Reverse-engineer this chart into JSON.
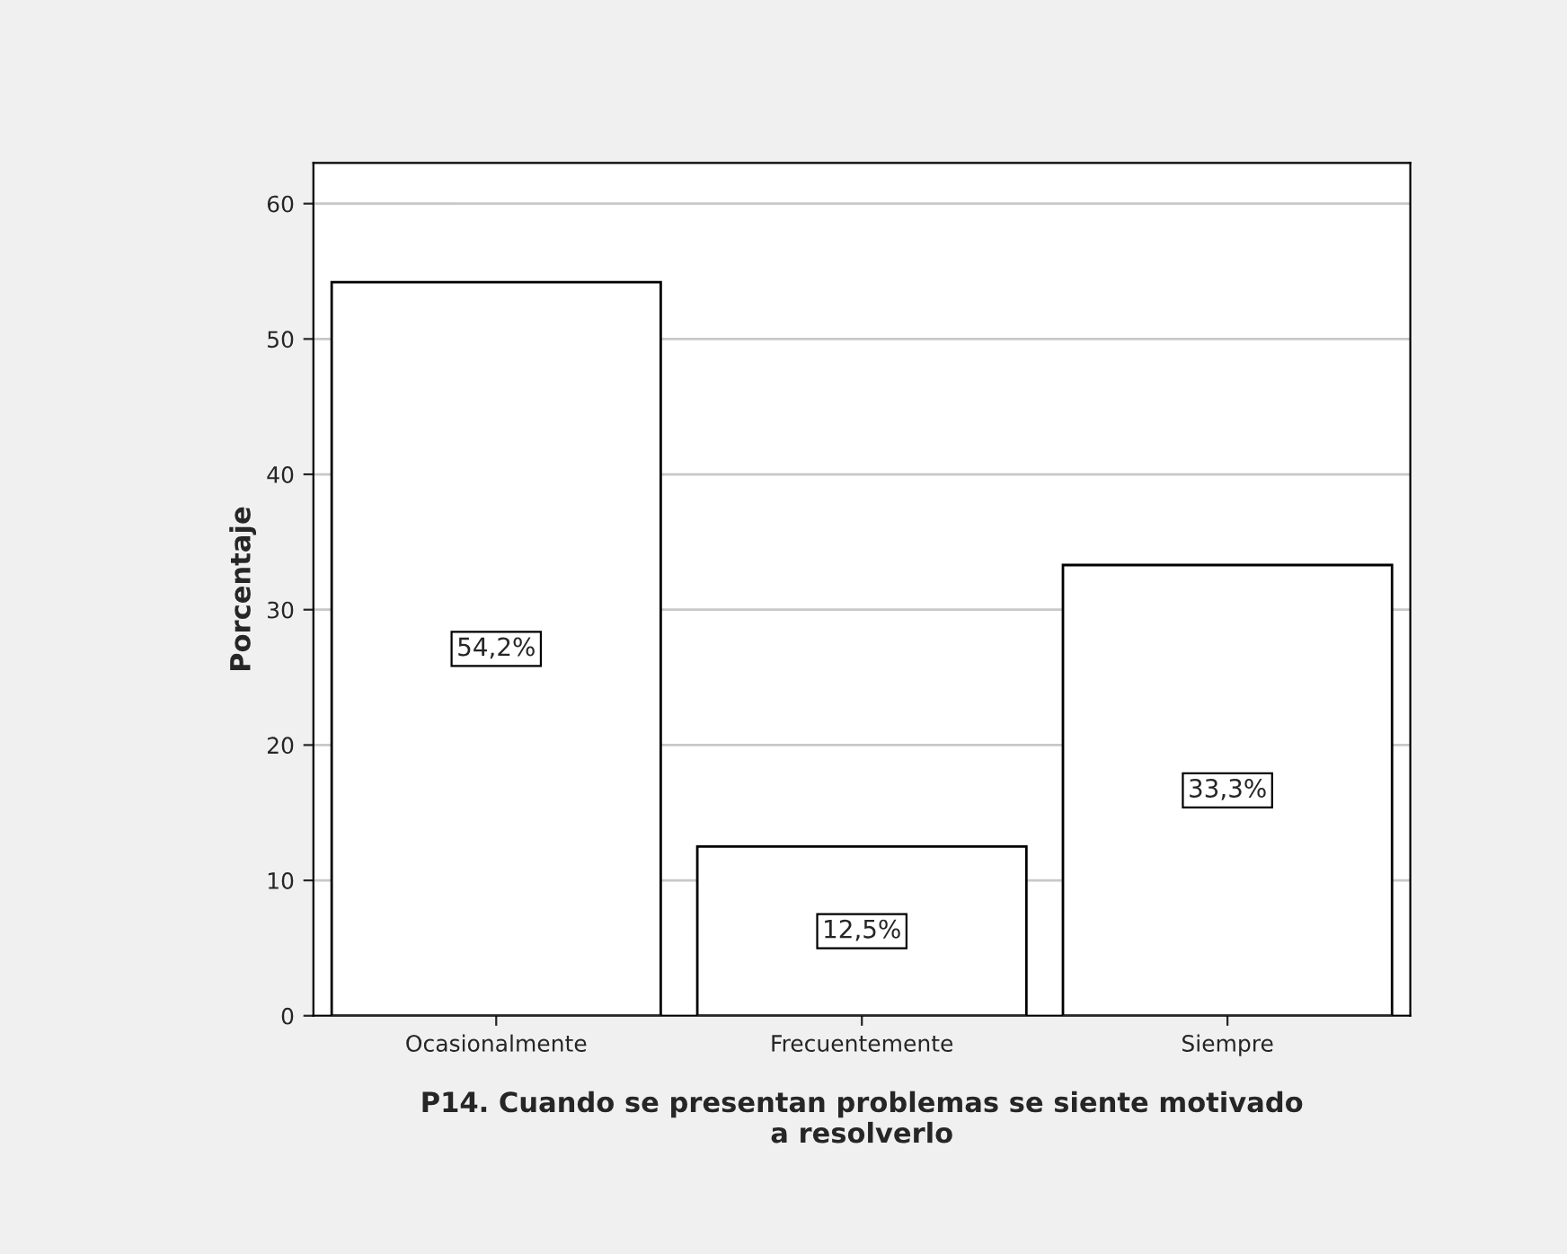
{
  "chart_data": {
    "type": "bar",
    "categories": [
      "Ocasionalmente",
      "Frecuentemente",
      "Siempre"
    ],
    "values": [
      54.2,
      12.5,
      33.3
    ],
    "value_labels": [
      "54,2%",
      "12,5%",
      "33,3%"
    ],
    "color": "#ffffff",
    "xlabel": "P14. Cuando se presentan problemas se siente motivado\na resolverlo",
    "ylabel": "Porcentaje",
    "ylim": [
      0,
      63
    ],
    "yticks": [
      0,
      10,
      20,
      30,
      40,
      50,
      60
    ],
    "grid": "y"
  }
}
